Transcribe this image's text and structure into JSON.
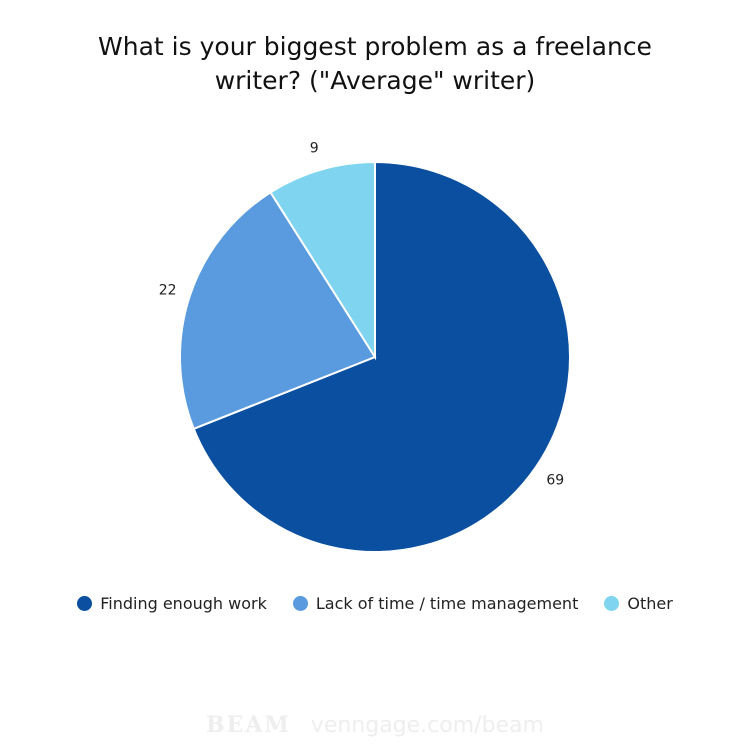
{
  "chart_data": {
    "type": "pie",
    "title": [
      "What is your biggest problem as a freelance",
      "writer?  (\"Average\" writer)"
    ],
    "categories": [
      "Finding enough work",
      "Lack of time / time management",
      "Other"
    ],
    "values": [
      69,
      22,
      9
    ],
    "colors": [
      "#0b4fa0",
      "#5a9be0",
      "#7fd4f0"
    ],
    "start_angle": "top",
    "direction": "clockwise",
    "legend_position": "bottom"
  },
  "watermark": {
    "logo": "BEAM",
    "text": "venngage.com/beam"
  }
}
